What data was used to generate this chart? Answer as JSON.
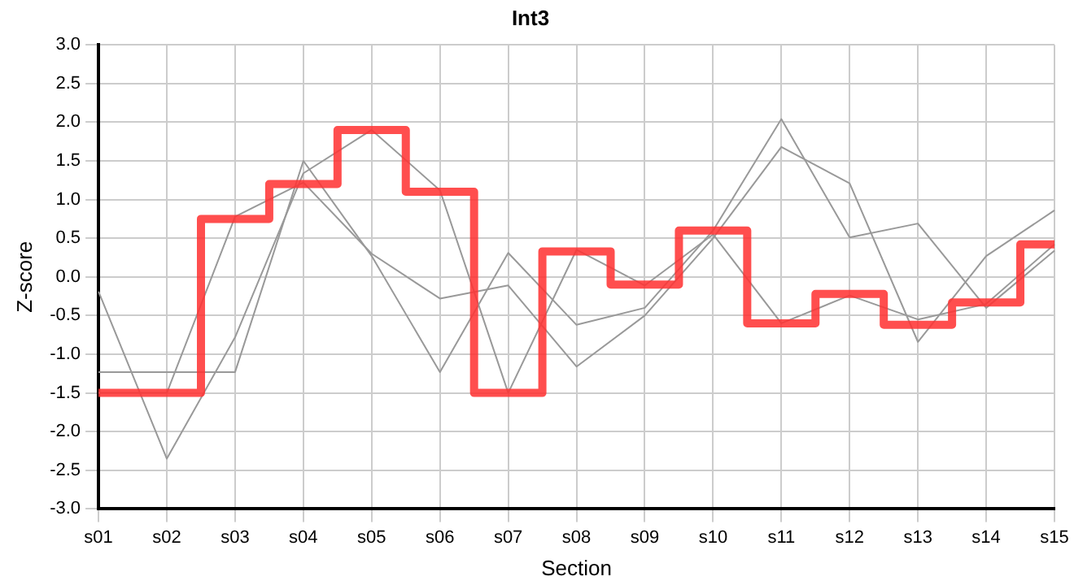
{
  "chart_data": {
    "type": "line",
    "title": "Int3",
    "xlabel": "Section",
    "ylabel": "Z-score",
    "categories": [
      "s01",
      "s02",
      "s03",
      "s04",
      "s05",
      "s06",
      "s07",
      "s08",
      "s09",
      "s10",
      "s11",
      "s12",
      "s13",
      "s14",
      "s15"
    ],
    "series": [
      {
        "color": "#999999",
        "values": [
          -1.23,
          -1.23,
          -1.23,
          1.5,
          0.27,
          -1.23,
          0.31,
          -0.62,
          -0.4,
          0.6,
          2.04,
          0.51,
          0.69,
          -0.4,
          0.34
        ]
      },
      {
        "color": "#999999",
        "values": [
          -0.19,
          -2.35,
          -0.78,
          1.34,
          1.9,
          1.12,
          -1.5,
          0.35,
          -0.11,
          0.55,
          -0.6,
          -0.24,
          -0.55,
          -0.35,
          0.42
        ]
      },
      {
        "color": "#999999",
        "values": [
          -1.5,
          -1.5,
          0.78,
          1.22,
          0.3,
          -0.28,
          -0.11,
          -1.16,
          -0.5,
          0.5,
          1.68,
          1.21,
          -0.84,
          0.27,
          0.86
        ]
      },
      {
        "type": "step",
        "color": "#ff3333",
        "values": [
          -1.5,
          -1.5,
          0.75,
          1.2,
          1.9,
          1.1,
          -1.5,
          0.33,
          -0.1,
          0.6,
          -0.6,
          -0.22,
          -0.62,
          -0.33,
          0.42
        ]
      }
    ],
    "ylim": [
      -3,
      3
    ],
    "yticks": [
      {
        "value": -3,
        "label": "-3.0"
      },
      {
        "value": -2.5,
        "label": "-2.5"
      },
      {
        "value": -2,
        "label": "-2.0"
      },
      {
        "value": -1.5,
        "label": "-1.5"
      },
      {
        "value": -1,
        "label": "-1.0"
      },
      {
        "value": -0.5,
        "label": "-0.5"
      },
      {
        "value": 0,
        "label": "0.0"
      },
      {
        "value": 0.5,
        "label": "0.5"
      },
      {
        "value": 1,
        "label": "1.0"
      },
      {
        "value": 1.5,
        "label": "1.5"
      },
      {
        "value": 2,
        "label": "2.0"
      },
      {
        "value": 2.5,
        "label": "2.5"
      },
      {
        "value": 3,
        "label": "3.0"
      }
    ],
    "grid": true,
    "legend": false,
    "marker": "none"
  }
}
